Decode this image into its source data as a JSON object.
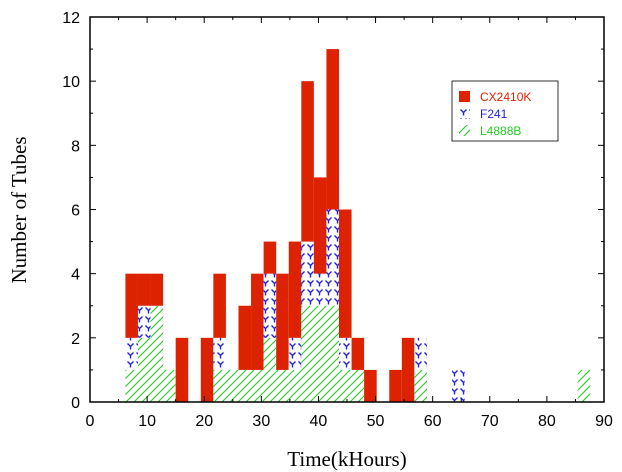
{
  "chart_data": {
    "type": "bar",
    "stacked": true,
    "xlabel": "Time(kHours)",
    "ylabel": "Number of Tubes",
    "xlim": [
      0,
      90
    ],
    "ylim": [
      0,
      12
    ],
    "xticks": [
      0,
      10,
      20,
      30,
      40,
      50,
      60,
      70,
      80,
      90
    ],
    "yticks": [
      0,
      2,
      4,
      6,
      8,
      10,
      12
    ],
    "bin_width": 2.2,
    "x": [
      7.3,
      9.5,
      11.7,
      13.9,
      16.1,
      18.3,
      20.5,
      22.7,
      24.9,
      27.1,
      29.3,
      31.5,
      33.7,
      35.9,
      38.1,
      40.3,
      42.5,
      44.7,
      46.9,
      49.1,
      51.3,
      53.5,
      55.7,
      57.9,
      60.1,
      62.3,
      64.5,
      66.7,
      68.9,
      71.1,
      73.3,
      75.5,
      77.7,
      79.9,
      82.1,
      84.3,
      86.5
    ],
    "series": [
      {
        "name": "L4888B",
        "color": "#22cc22",
        "pattern": "hatch",
        "values": [
          1,
          2,
          3,
          1,
          0,
          0,
          0,
          1,
          1,
          1,
          1,
          2,
          1,
          1,
          3,
          3,
          3,
          1,
          1,
          0,
          0,
          0,
          0,
          1,
          0,
          0,
          0,
          0,
          0,
          0,
          0,
          0,
          0,
          0,
          0,
          0,
          1
        ]
      },
      {
        "name": "F241",
        "color": "#2222dd",
        "pattern": "dots",
        "values": [
          1,
          1,
          0,
          0,
          0,
          0,
          0,
          1,
          0,
          0,
          0,
          2,
          0,
          1,
          2,
          1,
          3,
          1,
          0,
          0,
          0,
          0,
          0,
          1,
          0,
          0,
          1,
          0,
          0,
          0,
          0,
          0,
          0,
          0,
          0,
          0,
          0
        ]
      },
      {
        "name": "CX2410K",
        "color": "#dd2200",
        "pattern": "solid",
        "values": [
          2,
          1,
          1,
          0,
          2,
          0,
          2,
          2,
          0,
          2,
          3,
          1,
          3,
          3,
          5,
          3,
          5,
          4,
          1,
          1,
          0,
          1,
          2,
          0,
          0,
          0,
          0,
          0,
          0,
          0,
          0,
          0,
          0,
          0,
          0,
          0,
          0
        ]
      }
    ],
    "legend": {
      "position": "top-right",
      "entries": [
        "CX2410K",
        "F241",
        "L4888B"
      ]
    }
  },
  "colors": {
    "cx2410k": "#dd2200",
    "f241": "#2222dd",
    "l4888b": "#22cc22",
    "axis": "#000000"
  }
}
